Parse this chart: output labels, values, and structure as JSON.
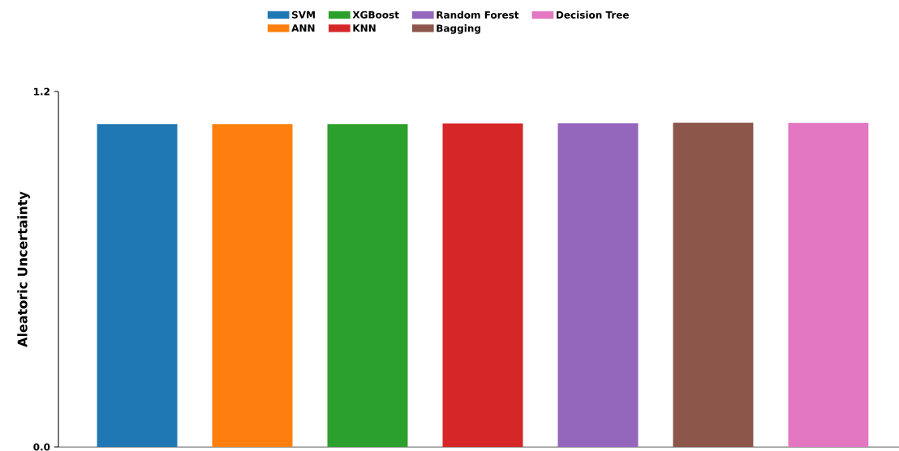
{
  "chart_data": {
    "type": "bar",
    "ylabel": "Aleatoric Uncertainty",
    "categories": [
      null,
      null,
      null,
      null,
      null,
      null,
      null
    ],
    "series": [
      {
        "name": "SVM",
        "color": "#1f77b4",
        "values": [
          1.09,
          null,
          null,
          null,
          null,
          null,
          null
        ]
      },
      {
        "name": "ANN",
        "color": "#ff7f0e",
        "values": [
          null,
          1.09,
          null,
          null,
          null,
          null,
          null
        ]
      },
      {
        "name": "XGBoost",
        "color": "#2ca02c",
        "values": [
          null,
          null,
          1.09,
          null,
          null,
          null,
          null
        ]
      },
      {
        "name": "KNN",
        "color": "#d62728",
        "values": [
          null,
          null,
          null,
          1.092,
          null,
          null,
          null
        ]
      },
      {
        "name": "Random Forest",
        "color": "#9467bd",
        "values": [
          null,
          null,
          null,
          null,
          1.093,
          null,
          null
        ]
      },
      {
        "name": "Bagging",
        "color": "#8c564b",
        "values": [
          null,
          null,
          null,
          null,
          null,
          1.095,
          null
        ]
      },
      {
        "name": "Decision Tree",
        "color": "#e377c2",
        "values": [
          null,
          null,
          null,
          null,
          null,
          null,
          1.094
        ]
      }
    ],
    "ylim": [
      0,
      1.2
    ],
    "yticks": [
      {
        "value": 0,
        "label": "0.0"
      },
      {
        "value": 1.2,
        "label": "1.2"
      }
    ],
    "grid": false,
    "legend": "top"
  }
}
